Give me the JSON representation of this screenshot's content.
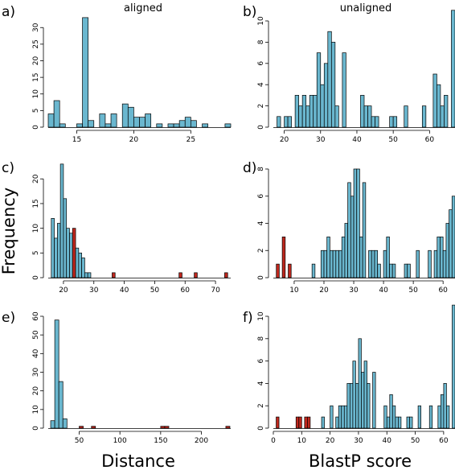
{
  "figure": {
    "ylabel": "Frequency",
    "xlabel_left": "Distance",
    "xlabel_right": "BlastP score",
    "col_title_left": "aligned",
    "col_title_right": "unaligned",
    "colors": {
      "blue": "#6ab7cf",
      "red": "#c0281e",
      "outline": "#000000"
    }
  },
  "chart_data": [
    {
      "panel": "a)",
      "type": "bar",
      "title": "aligned",
      "xlim": [
        12.5,
        28.5
      ],
      "ylim": [
        0,
        32
      ],
      "xticks": [
        15,
        20,
        25
      ],
      "yticks": [
        0,
        5,
        10,
        15,
        20,
        25,
        30
      ],
      "bin_width": 0.5,
      "bars": [
        {
          "x": 12.75,
          "y": 4,
          "c": "blue"
        },
        {
          "x": 13.25,
          "y": 8,
          "c": "blue"
        },
        {
          "x": 13.75,
          "y": 1,
          "c": "blue"
        },
        {
          "x": 15.25,
          "y": 1,
          "c": "blue"
        },
        {
          "x": 15.75,
          "y": 33,
          "c": "blue"
        },
        {
          "x": 16.25,
          "y": 2,
          "c": "blue"
        },
        {
          "x": 17.25,
          "y": 4,
          "c": "blue"
        },
        {
          "x": 17.75,
          "y": 1,
          "c": "blue"
        },
        {
          "x": 18.25,
          "y": 4,
          "c": "blue"
        },
        {
          "x": 19.25,
          "y": 7,
          "c": "blue"
        },
        {
          "x": 19.75,
          "y": 6,
          "c": "blue"
        },
        {
          "x": 20.25,
          "y": 3,
          "c": "blue"
        },
        {
          "x": 20.75,
          "y": 3,
          "c": "blue"
        },
        {
          "x": 21.25,
          "y": 4,
          "c": "blue"
        },
        {
          "x": 22.25,
          "y": 1,
          "c": "blue"
        },
        {
          "x": 23.25,
          "y": 1,
          "c": "blue"
        },
        {
          "x": 23.75,
          "y": 1,
          "c": "blue"
        },
        {
          "x": 24.25,
          "y": 2,
          "c": "blue"
        },
        {
          "x": 24.75,
          "y": 3,
          "c": "blue"
        },
        {
          "x": 25.25,
          "y": 2,
          "c": "blue"
        },
        {
          "x": 26.25,
          "y": 1,
          "c": "blue"
        },
        {
          "x": 28.25,
          "y": 1,
          "c": "blue"
        }
      ]
    },
    {
      "panel": "b)",
      "type": "bar",
      "title": "unaligned",
      "xlim": [
        17,
        67
      ],
      "ylim": [
        0,
        10
      ],
      "xticks": [
        20,
        30,
        40,
        50,
        60
      ],
      "yticks": [
        0,
        2,
        4,
        6,
        8,
        10
      ],
      "bin_width": 1,
      "bars": [
        {
          "x": 18.5,
          "y": 1,
          "c": "blue"
        },
        {
          "x": 20.5,
          "y": 1,
          "c": "blue"
        },
        {
          "x": 21.5,
          "y": 1,
          "c": "blue"
        },
        {
          "x": 23.5,
          "y": 3,
          "c": "blue"
        },
        {
          "x": 24.5,
          "y": 2,
          "c": "blue"
        },
        {
          "x": 25.5,
          "y": 3,
          "c": "blue"
        },
        {
          "x": 26.5,
          "y": 2,
          "c": "blue"
        },
        {
          "x": 27.5,
          "y": 3,
          "c": "blue"
        },
        {
          "x": 28.5,
          "y": 3,
          "c": "blue"
        },
        {
          "x": 29.5,
          "y": 7,
          "c": "blue"
        },
        {
          "x": 30.5,
          "y": 4,
          "c": "blue"
        },
        {
          "x": 31.5,
          "y": 6,
          "c": "blue"
        },
        {
          "x": 32.5,
          "y": 9,
          "c": "blue"
        },
        {
          "x": 33.5,
          "y": 8,
          "c": "blue"
        },
        {
          "x": 34.5,
          "y": 2,
          "c": "blue"
        },
        {
          "x": 36.5,
          "y": 7,
          "c": "blue"
        },
        {
          "x": 41.5,
          "y": 3,
          "c": "blue"
        },
        {
          "x": 42.5,
          "y": 2,
          "c": "blue"
        },
        {
          "x": 43.5,
          "y": 2,
          "c": "blue"
        },
        {
          "x": 44.5,
          "y": 1,
          "c": "blue"
        },
        {
          "x": 45.5,
          "y": 1,
          "c": "blue"
        },
        {
          "x": 49.5,
          "y": 1,
          "c": "blue"
        },
        {
          "x": 50.5,
          "y": 1,
          "c": "blue"
        },
        {
          "x": 53.5,
          "y": 2,
          "c": "blue"
        },
        {
          "x": 58.5,
          "y": 2,
          "c": "blue"
        },
        {
          "x": 61.5,
          "y": 5,
          "c": "blue"
        },
        {
          "x": 62.5,
          "y": 4,
          "c": "blue"
        },
        {
          "x": 63.5,
          "y": 2,
          "c": "blue"
        },
        {
          "x": 64.5,
          "y": 3,
          "c": "blue"
        },
        {
          "x": 66.5,
          "y": 11,
          "c": "blue"
        }
      ]
    },
    {
      "panel": "c)",
      "type": "bar",
      "xlim": [
        15,
        75
      ],
      "ylim": [
        0,
        22
      ],
      "xticks": [
        20,
        30,
        40,
        50,
        60,
        70
      ],
      "yticks": [
        0,
        5,
        10,
        15,
        20
      ],
      "bin_width": 1,
      "bars": [
        {
          "x": 16.5,
          "y": 12,
          "c": "blue"
        },
        {
          "x": 17.5,
          "y": 8,
          "c": "blue"
        },
        {
          "x": 18.5,
          "y": 11,
          "c": "blue"
        },
        {
          "x": 19.5,
          "y": 23,
          "c": "blue"
        },
        {
          "x": 20.5,
          "y": 16,
          "c": "blue"
        },
        {
          "x": 21.5,
          "y": 10,
          "c": "blue"
        },
        {
          "x": 22.5,
          "y": 9,
          "c": "blue"
        },
        {
          "x": 23.5,
          "y": 10,
          "c": "red"
        },
        {
          "x": 24.5,
          "y": 6,
          "c": "blue"
        },
        {
          "x": 25.5,
          "y": 5,
          "c": "blue"
        },
        {
          "x": 26.5,
          "y": 4,
          "c": "blue"
        },
        {
          "x": 27.5,
          "y": 1,
          "c": "blue"
        },
        {
          "x": 28.5,
          "y": 1,
          "c": "blue"
        },
        {
          "x": 36.5,
          "y": 1,
          "c": "red"
        },
        {
          "x": 58.5,
          "y": 1,
          "c": "red"
        },
        {
          "x": 63.5,
          "y": 1,
          "c": "red"
        },
        {
          "x": 73.5,
          "y": 1,
          "c": "red"
        }
      ]
    },
    {
      "panel": "d)",
      "type": "bar",
      "xlim": [
        3,
        64
      ],
      "ylim": [
        0,
        8
      ],
      "xticks": [
        10,
        20,
        30,
        40,
        50,
        60
      ],
      "yticks": [
        0,
        2,
        4,
        6,
        8
      ],
      "bin_width": 1,
      "bars": [
        {
          "x": 4.5,
          "y": 1,
          "c": "red"
        },
        {
          "x": 6.5,
          "y": 3,
          "c": "red"
        },
        {
          "x": 8.5,
          "y": 1,
          "c": "red"
        },
        {
          "x": 16.5,
          "y": 1,
          "c": "blue"
        },
        {
          "x": 19.5,
          "y": 2,
          "c": "blue"
        },
        {
          "x": 20.5,
          "y": 2,
          "c": "blue"
        },
        {
          "x": 21.5,
          "y": 3,
          "c": "blue"
        },
        {
          "x": 22.5,
          "y": 2,
          "c": "blue"
        },
        {
          "x": 23.5,
          "y": 2,
          "c": "blue"
        },
        {
          "x": 24.5,
          "y": 2,
          "c": "blue"
        },
        {
          "x": 25.5,
          "y": 2,
          "c": "blue"
        },
        {
          "x": 26.5,
          "y": 3,
          "c": "blue"
        },
        {
          "x": 27.5,
          "y": 4,
          "c": "blue"
        },
        {
          "x": 28.5,
          "y": 7,
          "c": "blue"
        },
        {
          "x": 29.5,
          "y": 6,
          "c": "blue"
        },
        {
          "x": 30.5,
          "y": 8,
          "c": "blue"
        },
        {
          "x": 31.5,
          "y": 8,
          "c": "blue"
        },
        {
          "x": 32.5,
          "y": 3,
          "c": "blue"
        },
        {
          "x": 33.5,
          "y": 7,
          "c": "blue"
        },
        {
          "x": 35.5,
          "y": 2,
          "c": "blue"
        },
        {
          "x": 36.5,
          "y": 2,
          "c": "blue"
        },
        {
          "x": 37.5,
          "y": 2,
          "c": "blue"
        },
        {
          "x": 38.5,
          "y": 1,
          "c": "blue"
        },
        {
          "x": 40.5,
          "y": 2,
          "c": "blue"
        },
        {
          "x": 41.5,
          "y": 3,
          "c": "blue"
        },
        {
          "x": 42.5,
          "y": 1,
          "c": "blue"
        },
        {
          "x": 43.5,
          "y": 1,
          "c": "blue"
        },
        {
          "x": 47.5,
          "y": 1,
          "c": "blue"
        },
        {
          "x": 48.5,
          "y": 1,
          "c": "blue"
        },
        {
          "x": 51.5,
          "y": 2,
          "c": "blue"
        },
        {
          "x": 55.5,
          "y": 2,
          "c": "blue"
        },
        {
          "x": 57.5,
          "y": 2,
          "c": "blue"
        },
        {
          "x": 58.5,
          "y": 3,
          "c": "blue"
        },
        {
          "x": 59.5,
          "y": 3,
          "c": "blue"
        },
        {
          "x": 60.5,
          "y": 2,
          "c": "blue"
        },
        {
          "x": 61.5,
          "y": 4,
          "c": "blue"
        },
        {
          "x": 62.5,
          "y": 5,
          "c": "blue"
        },
        {
          "x": 63.5,
          "y": 6,
          "c": "blue"
        }
      ]
    },
    {
      "panel": "e)",
      "type": "bar",
      "xlim": [
        12,
        236
      ],
      "ylim": [
        0,
        60
      ],
      "xticks": [
        50,
        100,
        150,
        200
      ],
      "yticks": [
        0,
        10,
        20,
        30,
        40,
        50,
        60
      ],
      "bin_width": 5,
      "bars": [
        {
          "x": 17.5,
          "y": 4,
          "c": "blue"
        },
        {
          "x": 22.5,
          "y": 58,
          "c": "blue"
        },
        {
          "x": 27.5,
          "y": 25,
          "c": "blue"
        },
        {
          "x": 32.5,
          "y": 5,
          "c": "blue"
        },
        {
          "x": 52.5,
          "y": 1,
          "c": "red"
        },
        {
          "x": 67.5,
          "y": 1,
          "c": "red"
        },
        {
          "x": 152.5,
          "y": 1,
          "c": "red"
        },
        {
          "x": 157.5,
          "y": 1,
          "c": "red"
        },
        {
          "x": 232.5,
          "y": 1,
          "c": "red"
        }
      ]
    },
    {
      "panel": "f)",
      "type": "bar",
      "xlim": [
        0,
        64
      ],
      "ylim": [
        0,
        10
      ],
      "xticks": [
        0,
        10,
        20,
        30,
        40,
        50,
        60
      ],
      "yticks": [
        0,
        2,
        4,
        6,
        8,
        10
      ],
      "bin_width": 1,
      "bars": [
        {
          "x": 1.5,
          "y": 1,
          "c": "red"
        },
        {
          "x": 8.5,
          "y": 1,
          "c": "red"
        },
        {
          "x": 9.5,
          "y": 1,
          "c": "red"
        },
        {
          "x": 11.5,
          "y": 1,
          "c": "red"
        },
        {
          "x": 12.5,
          "y": 1,
          "c": "red"
        },
        {
          "x": 17.5,
          "y": 1,
          "c": "blue"
        },
        {
          "x": 20.5,
          "y": 2,
          "c": "blue"
        },
        {
          "x": 22.5,
          "y": 1,
          "c": "blue"
        },
        {
          "x": 23.5,
          "y": 2,
          "c": "blue"
        },
        {
          "x": 24.5,
          "y": 2,
          "c": "blue"
        },
        {
          "x": 25.5,
          "y": 2,
          "c": "blue"
        },
        {
          "x": 26.5,
          "y": 4,
          "c": "blue"
        },
        {
          "x": 27.5,
          "y": 4,
          "c": "blue"
        },
        {
          "x": 28.5,
          "y": 6,
          "c": "blue"
        },
        {
          "x": 29.5,
          "y": 4,
          "c": "blue"
        },
        {
          "x": 30.5,
          "y": 8,
          "c": "blue"
        },
        {
          "x": 31.5,
          "y": 5,
          "c": "blue"
        },
        {
          "x": 32.5,
          "y": 6,
          "c": "blue"
        },
        {
          "x": 33.5,
          "y": 4,
          "c": "blue"
        },
        {
          "x": 35.5,
          "y": 5,
          "c": "blue"
        },
        {
          "x": 39.5,
          "y": 2,
          "c": "blue"
        },
        {
          "x": 40.5,
          "y": 1,
          "c": "blue"
        },
        {
          "x": 41.5,
          "y": 3,
          "c": "blue"
        },
        {
          "x": 42.5,
          "y": 2,
          "c": "blue"
        },
        {
          "x": 43.5,
          "y": 1,
          "c": "blue"
        },
        {
          "x": 44.5,
          "y": 1,
          "c": "blue"
        },
        {
          "x": 47.5,
          "y": 1,
          "c": "blue"
        },
        {
          "x": 48.5,
          "y": 1,
          "c": "blue"
        },
        {
          "x": 51.5,
          "y": 2,
          "c": "blue"
        },
        {
          "x": 55.5,
          "y": 2,
          "c": "blue"
        },
        {
          "x": 58.5,
          "y": 2,
          "c": "blue"
        },
        {
          "x": 59.5,
          "y": 3,
          "c": "blue"
        },
        {
          "x": 60.5,
          "y": 4,
          "c": "blue"
        },
        {
          "x": 61.5,
          "y": 2,
          "c": "blue"
        },
        {
          "x": 63.5,
          "y": 11,
          "c": "blue"
        }
      ]
    }
  ]
}
